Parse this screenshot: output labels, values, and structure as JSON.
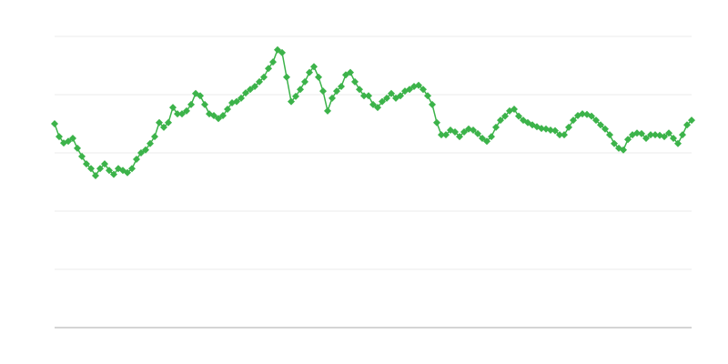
{
  "chart_data": {
    "type": "line",
    "color": "#3cb34a",
    "grid": true,
    "ylim": [
      0,
      5
    ],
    "yticks": [
      0,
      1,
      2,
      3,
      4,
      5
    ],
    "values": [
      3.5,
      3.28,
      3.17,
      3.2,
      3.25,
      3.08,
      2.94,
      2.81,
      2.73,
      2.61,
      2.73,
      2.81,
      2.7,
      2.63,
      2.73,
      2.7,
      2.66,
      2.73,
      2.89,
      3.0,
      3.05,
      3.16,
      3.28,
      3.52,
      3.44,
      3.52,
      3.78,
      3.67,
      3.67,
      3.72,
      3.83,
      4.02,
      3.98,
      3.83,
      3.67,
      3.64,
      3.59,
      3.64,
      3.75,
      3.86,
      3.88,
      3.94,
      4.03,
      4.09,
      4.14,
      4.22,
      4.3,
      4.45,
      4.56,
      4.77,
      4.72,
      4.3,
      3.88,
      3.97,
      4.09,
      4.22,
      4.38,
      4.48,
      4.3,
      4.06,
      3.72,
      3.94,
      4.06,
      4.14,
      4.34,
      4.38,
      4.22,
      4.09,
      3.98,
      3.98,
      3.83,
      3.78,
      3.88,
      3.94,
      4.02,
      3.94,
      3.98,
      4.06,
      4.09,
      4.14,
      4.16,
      4.09,
      3.98,
      3.83,
      3.52,
      3.31,
      3.31,
      3.39,
      3.36,
      3.28,
      3.36,
      3.41,
      3.39,
      3.33,
      3.25,
      3.2,
      3.28,
      3.44,
      3.56,
      3.63,
      3.72,
      3.75,
      3.63,
      3.56,
      3.52,
      3.48,
      3.45,
      3.42,
      3.41,
      3.39,
      3.38,
      3.31,
      3.31,
      3.44,
      3.56,
      3.64,
      3.67,
      3.66,
      3.63,
      3.56,
      3.48,
      3.41,
      3.31,
      3.16,
      3.08,
      3.05,
      3.23,
      3.31,
      3.34,
      3.33,
      3.25,
      3.31,
      3.31,
      3.3,
      3.28,
      3.34,
      3.25,
      3.16,
      3.31,
      3.48,
      3.56
    ]
  }
}
